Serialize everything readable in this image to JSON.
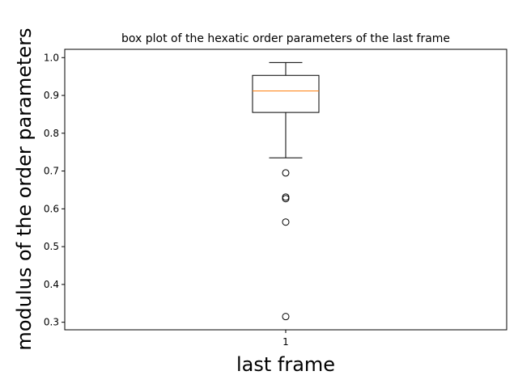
{
  "chart_data": {
    "type": "box",
    "title": "box plot of the hexatic order parameters of the last frame",
    "xlabel": "last frame",
    "ylabel": "modulus of the order parameters",
    "categories": [
      "1"
    ],
    "ylim": [
      0.28,
      1.022
    ],
    "yticks": [
      "0.3",
      "0.4",
      "0.5",
      "0.6",
      "0.7",
      "0.8",
      "0.9",
      "1.0"
    ],
    "boxes": [
      {
        "category": "1",
        "whisker_low": 0.735,
        "q1": 0.855,
        "median": 0.912,
        "q3": 0.953,
        "whisker_high": 0.987,
        "outliers": [
          0.695,
          0.631,
          0.627,
          0.565,
          0.315
        ]
      }
    ],
    "grid": false,
    "colors": {
      "box": "#000000",
      "median": "#ff7f0e",
      "flier": "#000000"
    }
  }
}
